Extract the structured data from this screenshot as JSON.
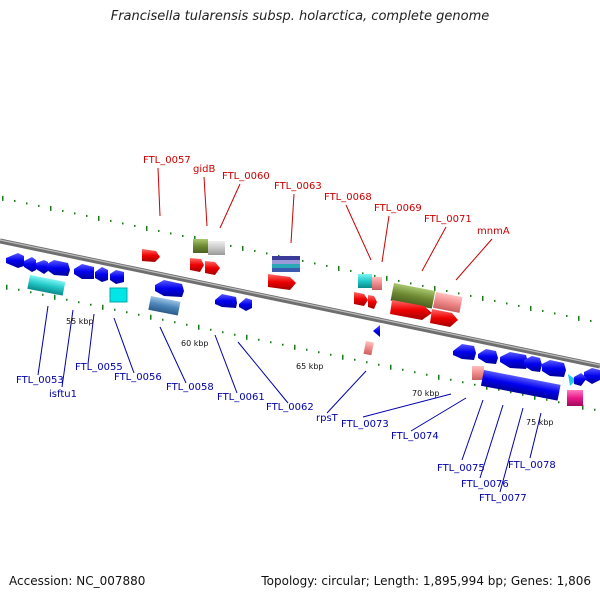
{
  "title": "Francisella tularensis subsp. holarctica, complete genome",
  "footer": {
    "accession": "Accession: NC_007880",
    "summary": "Topology: circular; Length: 1,895,994 bp; Genes: 1,806"
  },
  "scale_labels": [
    "55 kbp",
    "60 kbp",
    "65 kbp",
    "70 kbp",
    "75 kbp"
  ],
  "labels_top": [
    "FTL_0057",
    "gidB",
    "FTL_0060",
    "FTL_0063",
    "FTL_0068",
    "FTL_0069",
    "FTL_0071",
    "mnmA"
  ],
  "labels_bottom": [
    "FTL_0053",
    "isftu1",
    "FTL_0055",
    "FTL_0056",
    "FTL_0058",
    "FTL_0061",
    "FTL_0062",
    "rpsT",
    "FTL_0073",
    "FTL_0074",
    "FTL_0075",
    "FTL_0076",
    "FTL_0077",
    "FTL_0078"
  ],
  "colors": {
    "top_label": "#cc0000",
    "bottom_label": "#0000aa",
    "forward_gene": "#ee0000",
    "reverse_gene": "#0000ee",
    "tick": "#1a7a1a"
  }
}
